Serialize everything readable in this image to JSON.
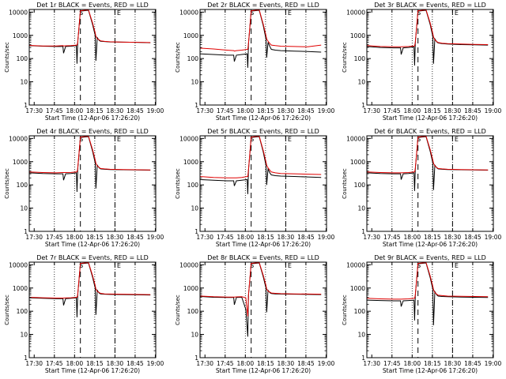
{
  "figure": {
    "xlabel": "Start Time (12-Apr-06 17:26:20)",
    "ylabel": "Counts/sec",
    "x_tick_labels": [
      "17:30",
      "17:45",
      "18:00",
      "18:15",
      "18:30",
      "18:45",
      "19:00"
    ],
    "y_tick_labels": [
      "1",
      "10",
      "100",
      "1000",
      "10000"
    ],
    "markers": {
      "S": "S",
      "E": "E"
    },
    "colors": {
      "events": "#000000",
      "lld": "#e00000",
      "grid": "#000000",
      "background": "#ffffff"
    }
  },
  "chart_data": [
    {
      "type": "line",
      "title": "Det 1r BLACK = Events, RED = LLD",
      "x_unit": "minutes after 17:26:20",
      "xlim": [
        0,
        94
      ],
      "ylim": [
        1,
        13000
      ],
      "y_scale": "log",
      "x": [
        0,
        10,
        20,
        25,
        25.5,
        27,
        31,
        35,
        35.5,
        36,
        38,
        44,
        47,
        49,
        49.5,
        50.5,
        52,
        53,
        56,
        60,
        70,
        80,
        90
      ],
      "series": [
        {
          "name": "Events",
          "values": [
            360,
            340,
            330,
            330,
            170,
            330,
            340,
            360,
            60,
            500,
            11000,
            12000,
            3000,
            1000,
            80,
            800,
            600,
            560,
            540,
            520,
            510,
            500,
            480
          ]
        },
        {
          "name": "LLD",
          "values": [
            370,
            350,
            350,
            360,
            350,
            355,
            360,
            380,
            380,
            500,
            11500,
            12500,
            3500,
            1300,
            900,
            720,
            640,
            580,
            550,
            530,
            510,
            500,
            490
          ]
        }
      ]
    },
    {
      "type": "line",
      "title": "Det 2r BLACK = Events, RED = LLD",
      "x_unit": "minutes after 17:26:20",
      "xlim": [
        0,
        94
      ],
      "ylim": [
        1,
        13000
      ],
      "y_scale": "log",
      "x": [
        0,
        10,
        20,
        25,
        25.5,
        27,
        31,
        35,
        35.5,
        36,
        38,
        44,
        47,
        49,
        49.5,
        50.5,
        52,
        53,
        56,
        60,
        70,
        80,
        90
      ],
      "series": [
        {
          "name": "Events",
          "values": [
            160,
            150,
            140,
            140,
            75,
            140,
            150,
            160,
            40,
            420,
            11000,
            12000,
            2600,
            700,
            110,
            500,
            320,
            250,
            230,
            220,
            210,
            200,
            190
          ]
        },
        {
          "name": "LLD",
          "values": [
            280,
            260,
            230,
            220,
            210,
            220,
            230,
            250,
            250,
            450,
            11500,
            12500,
            3000,
            1000,
            700,
            560,
            440,
            380,
            360,
            340,
            330,
            320,
            380
          ]
        }
      ]
    },
    {
      "type": "line",
      "title": "Det 3r BLACK = Events, RED = LLD",
      "x_unit": "minutes after 17:26:20",
      "xlim": [
        0,
        94
      ],
      "ylim": [
        1,
        13000
      ],
      "y_scale": "log",
      "x": [
        0,
        10,
        20,
        25,
        25.5,
        27,
        31,
        35,
        35.5,
        36,
        38,
        44,
        47,
        49,
        49.5,
        50.5,
        52,
        53,
        56,
        60,
        70,
        80,
        90
      ],
      "series": [
        {
          "name": "Events",
          "values": [
            330,
            300,
            290,
            290,
            150,
            290,
            300,
            320,
            50,
            480,
            11000,
            12000,
            3000,
            900,
            60,
            700,
            520,
            470,
            440,
            420,
            400,
            390,
            380
          ]
        },
        {
          "name": "LLD",
          "values": [
            360,
            330,
            320,
            320,
            320,
            325,
            330,
            350,
            350,
            500,
            11500,
            12500,
            3500,
            1200,
            850,
            640,
            540,
            490,
            460,
            440,
            420,
            410,
            400
          ]
        }
      ]
    },
    {
      "type": "line",
      "title": "Det 4r BLACK = Events, RED = LLD",
      "x_unit": "minutes after 17:26:20",
      "xlim": [
        0,
        94
      ],
      "ylim": [
        1,
        13000
      ],
      "y_scale": "log",
      "x": [
        0,
        10,
        20,
        25,
        25.5,
        27,
        31,
        35,
        35.5,
        36,
        38,
        44,
        47,
        49,
        49.5,
        50.5,
        52,
        53,
        56,
        60,
        70,
        80,
        90
      ],
      "series": [
        {
          "name": "Events",
          "values": [
            330,
            310,
            300,
            300,
            160,
            300,
            310,
            330,
            50,
            480,
            11000,
            12000,
            2900,
            900,
            70,
            700,
            540,
            490,
            470,
            460,
            450,
            440,
            430
          ]
        },
        {
          "name": "LLD",
          "values": [
            360,
            340,
            330,
            340,
            340,
            340,
            345,
            360,
            360,
            500,
            11500,
            12500,
            3400,
            1200,
            860,
            660,
            560,
            510,
            490,
            470,
            460,
            450,
            440
          ]
        }
      ]
    },
    {
      "type": "line",
      "title": "Det 5r BLACK = Events, RED = LLD",
      "x_unit": "minutes after 17:26:20",
      "xlim": [
        0,
        94
      ],
      "ylim": [
        1,
        13000
      ],
      "y_scale": "log",
      "x": [
        0,
        10,
        20,
        25,
        25.5,
        27,
        31,
        35,
        35.5,
        36,
        38,
        44,
        47,
        49,
        49.5,
        50.5,
        52,
        53,
        56,
        60,
        70,
        80,
        90
      ],
      "series": [
        {
          "name": "Events",
          "values": [
            170,
            160,
            150,
            150,
            90,
            150,
            160,
            170,
            40,
            420,
            11000,
            12000,
            2600,
            700,
            100,
            480,
            320,
            270,
            250,
            240,
            230,
            220,
            210
          ]
        },
        {
          "name": "LLD",
          "values": [
            230,
            210,
            200,
            200,
            200,
            200,
            210,
            230,
            230,
            450,
            11500,
            12500,
            3000,
            1000,
            700,
            540,
            420,
            360,
            330,
            310,
            300,
            290,
            280
          ]
        }
      ]
    },
    {
      "type": "line",
      "title": "Det 6r BLACK = Events, RED = LLD",
      "x_unit": "minutes after 17:26:20",
      "xlim": [
        0,
        94
      ],
      "ylim": [
        1,
        13000
      ],
      "y_scale": "log",
      "x": [
        0,
        10,
        20,
        25,
        25.5,
        27,
        31,
        35,
        35.5,
        36,
        38,
        44,
        47,
        49,
        49.5,
        50.5,
        52,
        53,
        56,
        60,
        70,
        80,
        90
      ],
      "series": [
        {
          "name": "Events",
          "values": [
            330,
            310,
            300,
            300,
            170,
            300,
            310,
            330,
            55,
            480,
            11000,
            12000,
            2900,
            900,
            60,
            700,
            540,
            490,
            470,
            460,
            450,
            440,
            430
          ]
        },
        {
          "name": "LLD",
          "values": [
            360,
            340,
            330,
            330,
            330,
            335,
            340,
            360,
            360,
            500,
            11500,
            12500,
            3400,
            1200,
            860,
            660,
            560,
            510,
            490,
            470,
            460,
            450,
            440
          ]
        }
      ]
    },
    {
      "type": "line",
      "title": "Det 7r BLACK = Events, RED = LLD",
      "x_unit": "minutes after 17:26:20",
      "xlim": [
        0,
        94
      ],
      "ylim": [
        1,
        13000
      ],
      "y_scale": "log",
      "x": [
        0,
        10,
        20,
        25,
        25.5,
        27,
        31,
        35,
        35.5,
        36,
        38,
        44,
        47,
        49,
        49.5,
        50.5,
        52,
        53,
        56,
        60,
        70,
        80,
        90
      ],
      "series": [
        {
          "name": "Events",
          "values": [
            380,
            360,
            350,
            350,
            180,
            350,
            360,
            380,
            55,
            500,
            11000,
            12000,
            3000,
            1000,
            70,
            800,
            600,
            560,
            540,
            530,
            520,
            510,
            500
          ]
        },
        {
          "name": "LLD",
          "values": [
            400,
            380,
            370,
            370,
            370,
            375,
            380,
            400,
            400,
            520,
            11500,
            12500,
            3500,
            1300,
            900,
            720,
            640,
            590,
            560,
            550,
            540,
            530,
            520
          ]
        }
      ]
    },
    {
      "type": "line",
      "title": "Det 8r BLACK = Events, RED = LLD",
      "x_unit": "minutes after 17:26:20",
      "xlim": [
        0,
        94
      ],
      "ylim": [
        1,
        13000
      ],
      "y_scale": "log",
      "x": [
        0,
        10,
        20,
        25,
        25.5,
        27,
        31,
        34,
        35.5,
        36,
        38,
        44,
        47,
        49,
        49.5,
        50.5,
        52,
        53,
        56,
        60,
        70,
        80,
        90
      ],
      "series": [
        {
          "name": "Events",
          "values": [
            430,
            400,
            390,
            390,
            190,
            390,
            400,
            120,
            8,
            480,
            11000,
            12000,
            3000,
            1000,
            90,
            800,
            620,
            580,
            560,
            550,
            540,
            530,
            520
          ]
        },
        {
          "name": "LLD",
          "values": [
            450,
            420,
            410,
            410,
            410,
            415,
            420,
            380,
            60,
            500,
            11500,
            12500,
            3500,
            1300,
            900,
            740,
            660,
            610,
            590,
            570,
            560,
            550,
            540
          ]
        }
      ]
    },
    {
      "type": "line",
      "title": "Det 9r BLACK = Events, RED = LLD",
      "x_unit": "minutes after 17:26:20",
      "xlim": [
        0,
        94
      ],
      "ylim": [
        1,
        13000
      ],
      "y_scale": "log",
      "x": [
        0,
        10,
        20,
        25,
        25.5,
        27,
        31,
        35,
        35.5,
        36,
        38,
        44,
        47,
        49,
        49.5,
        50.5,
        52,
        53,
        56,
        60,
        70,
        80,
        90
      ],
      "series": [
        {
          "name": "Events",
          "values": [
            300,
            290,
            280,
            280,
            160,
            280,
            290,
            300,
            40,
            480,
            11000,
            12000,
            2900,
            900,
            25,
            700,
            500,
            450,
            430,
            420,
            410,
            400,
            390
          ]
        },
        {
          "name": "LLD",
          "values": [
            360,
            340,
            330,
            330,
            330,
            335,
            340,
            360,
            360,
            500,
            11500,
            12500,
            3400,
            1200,
            850,
            640,
            540,
            490,
            470,
            450,
            440,
            430,
            420
          ]
        }
      ]
    }
  ]
}
